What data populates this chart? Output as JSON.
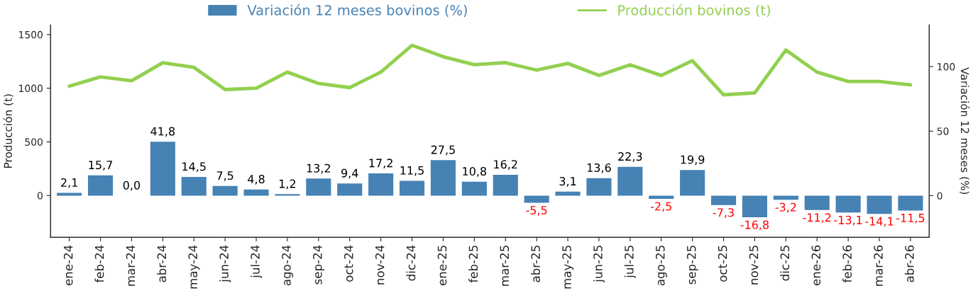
{
  "chart_data": {
    "type": "bar",
    "legend": "top",
    "ylabel": "Producción (t)",
    "y2label": "Variación 12 meses (%)",
    "categories": [
      "ene-24",
      "feb-24",
      "mar-24",
      "abr-24",
      "may-24",
      "jun-24",
      "jul-24",
      "ago-24",
      "sep-24",
      "oct-24",
      "nov-24",
      "dic-24",
      "ene-25",
      "feb-25",
      "mar-25",
      "abr-25",
      "may-25",
      "jun-25",
      "jul-25",
      "ago-25",
      "sep-25",
      "oct-25",
      "nov-25",
      "dic-25",
      "ene-26",
      "feb-26",
      "mar-26",
      "abr-26"
    ],
    "ylim": [
      -390,
      1590
    ],
    "yticks": [
      0,
      500,
      1000,
      1500
    ],
    "y2lim": [
      -32.3,
      132.3
    ],
    "y2ticks": [
      0,
      50,
      100
    ],
    "series": [
      {
        "name": "Variación 12 meses bovinos (%)",
        "axis": "y2",
        "color": "#4682b4",
        "values": [
          2.1,
          15.7,
          0.0,
          41.8,
          14.5,
          7.5,
          4.8,
          1.2,
          13.2,
          9.4,
          17.2,
          11.5,
          27.5,
          10.8,
          16.2,
          -5.5,
          3.1,
          13.6,
          22.3,
          -2.5,
          19.9,
          -7.3,
          -16.8,
          -3.2,
          -11.2,
          -13.1,
          -14.1,
          -11.5
        ],
        "value_labels": [
          "2,1",
          "15,7",
          "0,0",
          "41,8",
          "14,5",
          "7,5",
          "4,8",
          "1,2",
          "13,2",
          "9,4",
          "17,2",
          "11,5",
          "27,5",
          "10,8",
          "16,2",
          "-5,5",
          "3,1",
          "13,6",
          "22,3",
          "-2,5",
          "19,9",
          "-7,3",
          "-16,8",
          "-3,2",
          "-11,2",
          "-13,1",
          "-14,1",
          "-11,5"
        ]
      },
      {
        "name": "Producción bovinos (t)",
        "type": "line",
        "axis": "y",
        "color": "#92d050",
        "values": [
          1019,
          1106,
          1069,
          1238,
          1194,
          988,
          1000,
          1150,
          1044,
          1006,
          1150,
          1400,
          1294,
          1219,
          1238,
          1169,
          1231,
          1119,
          1219,
          1119,
          1256,
          938,
          956,
          1356,
          1150,
          1063,
          1063,
          1031
        ]
      }
    ]
  }
}
